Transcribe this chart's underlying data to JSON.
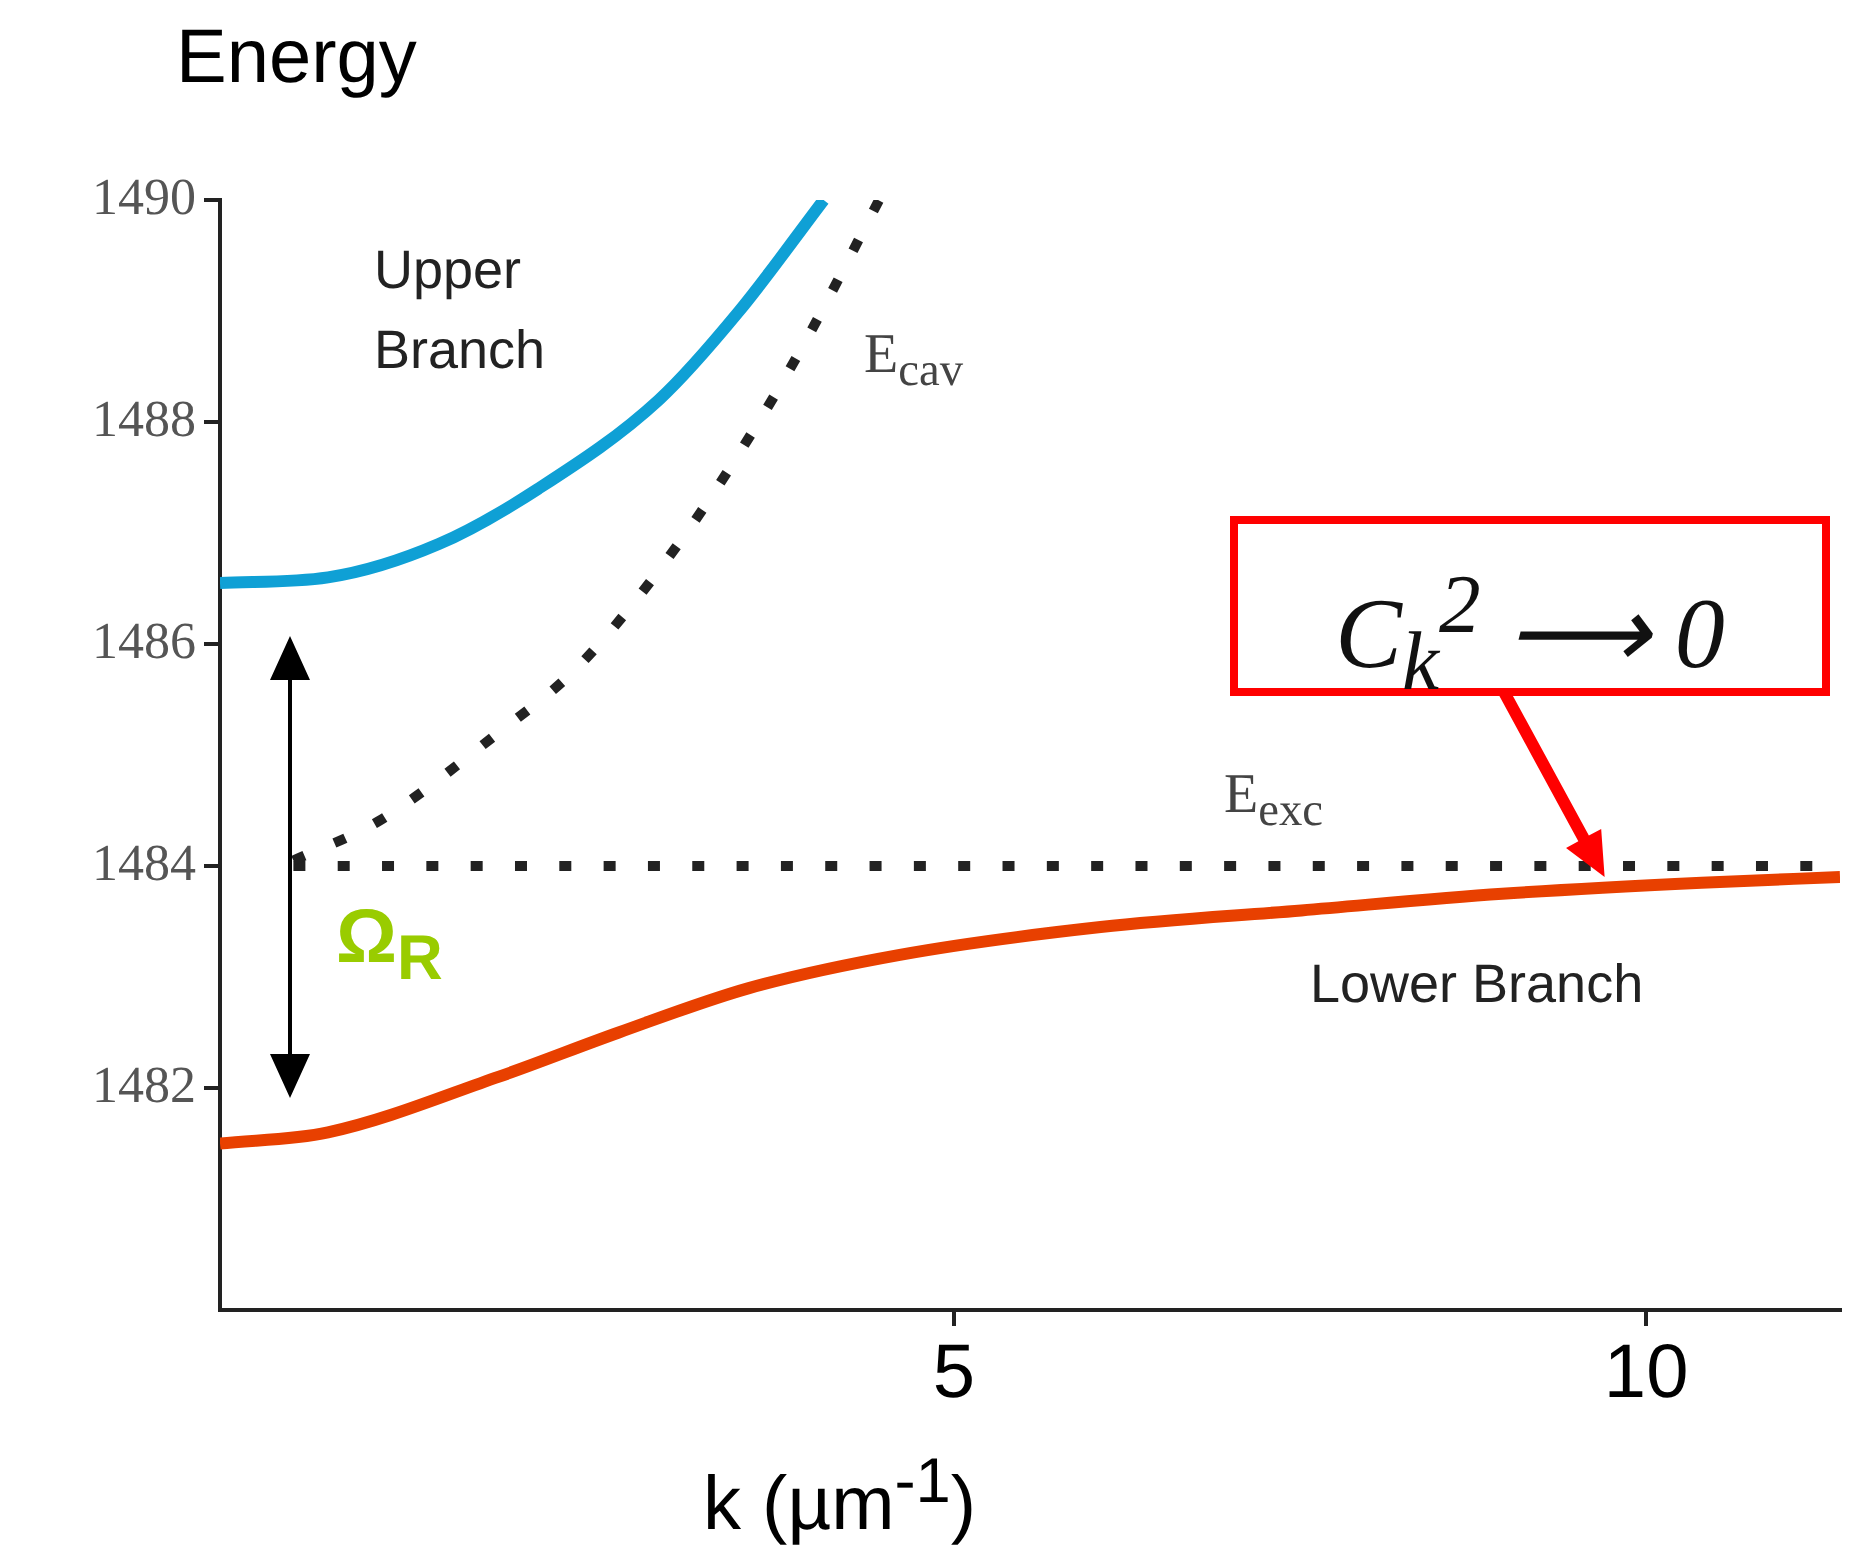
{
  "chart_data": {
    "type": "line",
    "title": "Energy",
    "xlabel": "k (µm$^{-1}$)",
    "xlim": [
      -0.3,
      11.4
    ],
    "xticks": [
      5,
      10
    ],
    "ylim": [
      1480,
      1490
    ],
    "yticks": [
      1482,
      1484,
      1486,
      1488,
      1490
    ],
    "grid": false,
    "legend": false,
    "marker": "none",
    "series": [
      {
        "color": "#0fa0d5",
        "line_style": "solid",
        "x": [
          -0.3,
          0.48,
          1.28,
          2.0,
          2.87,
          3.45,
          4.06
        ],
        "values": [
          1486.55,
          1486.6,
          1486.9,
          1487.4,
          1488.2,
          1489.0,
          1490.0
        ]
      },
      {
        "name": "E$_{cav}$",
        "color": "#222222",
        "line_style": "dashed",
        "x": [
          0.23,
          0.84,
          1.71,
          2.29,
          3.01,
          3.59,
          3.96,
          4.46
        ],
        "values": [
          1484.05,
          1484.4,
          1485.2,
          1485.8,
          1486.9,
          1488.0,
          1488.8,
          1490.0
        ]
      },
      {
        "name": "E$_{exc}$",
        "color": "#222222",
        "line_style": "dashed",
        "x": [
          0.23,
          11.2
        ],
        "values": [
          1484.0,
          1484.0
        ]
      },
      {
        "color": "#e84000",
        "line_style": "solid",
        "x": [
          -0.3,
          0.48,
          1.71,
          2.58,
          3.52,
          4.61,
          6.06,
          7.51,
          8.96,
          10.4,
          11.4
        ],
        "values": [
          1481.5,
          1481.6,
          1482.1,
          1482.5,
          1482.9,
          1483.2,
          1483.45,
          1483.6,
          1483.75,
          1483.85,
          1483.9
        ]
      }
    ],
    "annotations": [
      "Upper Branch",
      "Lower Branch",
      "Ω$_{R}$",
      {
        "text": "C$_{k}$$^{2}$ ⟶ 0",
        "x": 9.7,
        "y": 1483.9
      }
    ]
  }
}
